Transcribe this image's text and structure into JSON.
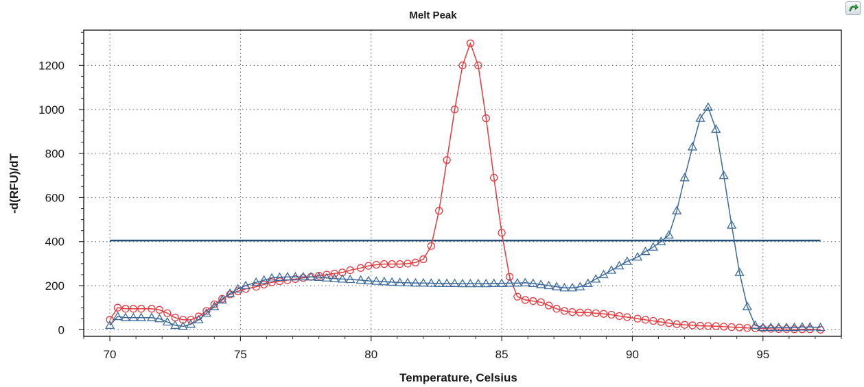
{
  "chart_data": {
    "type": "line",
    "title": "Melt Peak",
    "xlabel": "Temperature, Celsius",
    "ylabel": "-d(RFU)/dT",
    "xlim": [
      69,
      98
    ],
    "ylim": [
      -30,
      1360
    ],
    "x_ticks": [
      70,
      75,
      80,
      85,
      90,
      95
    ],
    "y_ticks": [
      0,
      200,
      400,
      600,
      800,
      1000,
      1200
    ],
    "grid": true,
    "threshold": {
      "value": 405,
      "x_start": 70,
      "x_end": 97.2,
      "color": "#1f4e79"
    },
    "series": [
      {
        "marker": "circle",
        "color": "#e8383d",
        "x": [
          70.0,
          70.3,
          70.6,
          70.9,
          71.2,
          71.6,
          71.9,
          72.2,
          72.5,
          72.8,
          73.1,
          73.4,
          73.7,
          74.0,
          74.3,
          74.6,
          74.9,
          75.2,
          75.6,
          75.9,
          76.2,
          76.5,
          76.8,
          77.1,
          77.4,
          77.7,
          78.0,
          78.3,
          78.6,
          78.9,
          79.2,
          79.6,
          79.9,
          80.2,
          80.5,
          80.8,
          81.1,
          81.4,
          81.7,
          82.0,
          82.3,
          82.6,
          82.9,
          83.2,
          83.5,
          83.8,
          84.1,
          84.4,
          84.7,
          85.0,
          85.3,
          85.6,
          85.9,
          86.2,
          86.5,
          86.8,
          87.1,
          87.4,
          87.7,
          88.0,
          88.3,
          88.6,
          88.9,
          89.2,
          89.5,
          89.8,
          90.2,
          90.5,
          90.8,
          91.1,
          91.4,
          91.7,
          92.0,
          92.3,
          92.6,
          92.9,
          93.2,
          93.5,
          93.8,
          94.1,
          94.4,
          94.7,
          95.0,
          95.3,
          95.6,
          95.9,
          96.2,
          96.5,
          96.8,
          97.2
        ],
        "y": [
          45,
          100,
          95,
          95,
          95,
          95,
          90,
          75,
          55,
          45,
          45,
          60,
          85,
          115,
          140,
          160,
          175,
          185,
          195,
          205,
          215,
          220,
          225,
          230,
          235,
          240,
          245,
          250,
          255,
          260,
          270,
          280,
          290,
          295,
          298,
          298,
          298,
          300,
          305,
          320,
          380,
          540,
          770,
          1000,
          1200,
          1300,
          1200,
          960,
          690,
          440,
          240,
          150,
          135,
          130,
          125,
          110,
          95,
          85,
          80,
          78,
          78,
          75,
          72,
          68,
          62,
          57,
          50,
          45,
          40,
          35,
          30,
          25,
          22,
          20,
          18,
          17,
          16,
          14,
          12,
          10,
          8,
          7,
          5,
          4,
          3,
          3,
          2,
          2,
          2,
          0
        ]
      },
      {
        "marker": "triangle",
        "color": "#3a6a9c",
        "x": [
          70.0,
          70.3,
          70.6,
          70.9,
          71.2,
          71.6,
          71.9,
          72.2,
          72.5,
          72.8,
          73.1,
          73.4,
          73.7,
          74.0,
          74.3,
          74.6,
          74.9,
          75.2,
          75.6,
          75.9,
          76.2,
          76.5,
          76.8,
          77.1,
          77.4,
          77.7,
          78.0,
          78.3,
          78.6,
          78.9,
          79.2,
          79.6,
          79.9,
          80.2,
          80.5,
          80.8,
          81.1,
          81.4,
          81.7,
          82.0,
          82.3,
          82.6,
          82.9,
          83.2,
          83.5,
          83.8,
          84.1,
          84.4,
          84.7,
          85.0,
          85.3,
          85.6,
          85.9,
          86.2,
          86.5,
          86.8,
          87.1,
          87.4,
          87.7,
          88.0,
          88.3,
          88.6,
          88.9,
          89.2,
          89.5,
          89.8,
          90.2,
          90.5,
          90.8,
          91.1,
          91.4,
          91.7,
          92.0,
          92.3,
          92.6,
          92.9,
          93.2,
          93.5,
          93.8,
          94.1,
          94.4,
          94.7,
          95.0,
          95.3,
          95.6,
          95.9,
          96.2,
          96.5,
          96.8,
          97.2
        ],
        "y": [
          20,
          60,
          55,
          55,
          55,
          55,
          50,
          35,
          20,
          15,
          25,
          45,
          75,
          105,
          135,
          165,
          185,
          200,
          215,
          225,
          235,
          238,
          240,
          240,
          240,
          240,
          238,
          235,
          232,
          230,
          228,
          225,
          222,
          220,
          218,
          216,
          214,
          213,
          212,
          212,
          211,
          210,
          210,
          210,
          209,
          209,
          209,
          209,
          210,
          210,
          211,
          212,
          213,
          210,
          205,
          200,
          195,
          190,
          190,
          195,
          210,
          230,
          250,
          270,
          290,
          310,
          330,
          355,
          375,
          400,
          430,
          540,
          690,
          830,
          960,
          1010,
          910,
          700,
          475,
          260,
          105,
          20,
          10,
          10,
          10,
          10,
          10,
          12,
          12,
          10
        ]
      }
    ]
  }
}
